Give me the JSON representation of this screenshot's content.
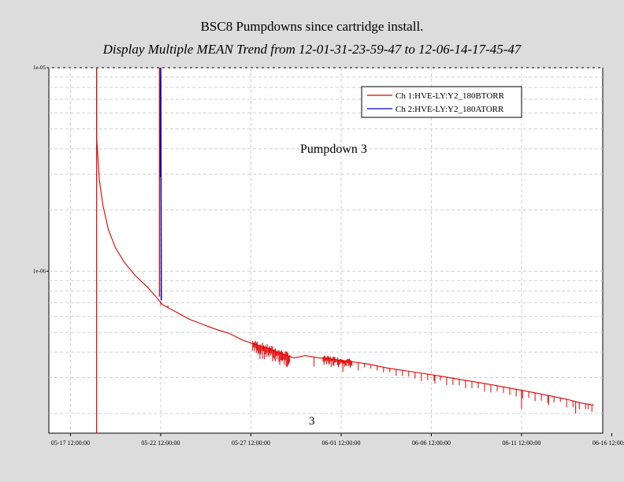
{
  "chart_data": {
    "type": "line",
    "title": "BSC8 Pumpdowns  since cartridge install.",
    "subtitle": "Display Multiple MEAN Trend from 12-01-31-23-59-47 to 12-06-14-17-45-47",
    "y_scale": "log",
    "ylim": [
      1.6e-07,
      1e-05
    ],
    "y_tick_labels": [
      "1e-05",
      "1e-06"
    ],
    "y_tick_values": [
      1e-05,
      1e-06
    ],
    "x_range_days": [
      -1.2,
      29.5
    ],
    "x_tick_labels": [
      "05-17 12:00:00",
      "05-22 12:00:00",
      "05-27 12:00:00",
      "06-01 12:00:00",
      "06-06 12:00:00",
      "06-11 12:00:00",
      "06-16 12:00:00"
    ],
    "x_tick_days": [
      0,
      5,
      10,
      15,
      20,
      25,
      30
    ],
    "grid": true,
    "legend_placement": "top-right",
    "annotations": [
      "Pumpdown 3",
      "3"
    ],
    "series": [
      {
        "name": "Ch 1:HVE-LY:Y2_180BTORR",
        "color": "#e00000",
        "points": [
          [
            1.45,
            4.5e-06
          ],
          [
            1.6,
            2.8e-06
          ],
          [
            1.8,
            2.1e-06
          ],
          [
            2.1,
            1.6e-06
          ],
          [
            2.5,
            1.3e-06
          ],
          [
            3.0,
            1.1e-06
          ],
          [
            3.6,
            9.5e-07
          ],
          [
            4.3,
            8.3e-07
          ],
          [
            4.9,
            7.2e-07
          ],
          [
            5.1,
            6.85e-07
          ],
          [
            5.5,
            6.55e-07
          ],
          [
            6.0,
            6.2e-07
          ],
          [
            6.6,
            5.8e-07
          ],
          [
            7.3,
            5.5e-07
          ],
          [
            8.0,
            5.2e-07
          ],
          [
            8.8,
            4.95e-07
          ],
          [
            9.5,
            4.6e-07
          ],
          [
            10.3,
            4.35e-07
          ],
          [
            11.0,
            4.15e-07
          ],
          [
            11.8,
            3.9e-07
          ],
          [
            12.4,
            3.75e-07
          ],
          [
            13.0,
            3.85e-07
          ],
          [
            13.8,
            3.75e-07
          ],
          [
            14.5,
            3.7e-07
          ],
          [
            15.5,
            3.6e-07
          ],
          [
            16.5,
            3.5e-07
          ],
          [
            17.5,
            3.35e-07
          ],
          [
            18.5,
            3.25e-07
          ],
          [
            19.5,
            3.15e-07
          ],
          [
            20.5,
            3.05e-07
          ],
          [
            21.5,
            2.95e-07
          ],
          [
            22.5,
            2.85e-07
          ],
          [
            23.5,
            2.75e-07
          ],
          [
            24.5,
            2.65e-07
          ],
          [
            25.5,
            2.55e-07
          ],
          [
            26.5,
            2.45e-07
          ],
          [
            27.5,
            2.35e-07
          ],
          [
            28.3,
            2.25e-07
          ],
          [
            29.0,
            2.2e-07
          ]
        ],
        "spikes_down": [
          [
            4.98,
            7e-07
          ],
          [
            10.5,
            3.7e-07
          ],
          [
            11.2,
            3.6e-07
          ],
          [
            13.5,
            3.4e-07
          ],
          [
            15.1,
            3.2e-07
          ],
          [
            20.2,
            2.8e-07
          ],
          [
            25.0,
            2.1e-07
          ],
          [
            26.5,
            2.2e-07
          ],
          [
            28.0,
            2e-07
          ],
          [
            28.7,
            2.1e-07
          ]
        ],
        "spikes_up": [
          [
            1.45,
            1e-05
          ],
          [
            5.0,
            6.8e-07
          ],
          [
            5.4,
            6.8e-07
          ]
        ]
      },
      {
        "name": "Ch 2:HVE-LY:Y2_180ATORR",
        "color": "#0000cc",
        "points": [
          [
            4.95,
            2.9e-06
          ],
          [
            5.0,
            1e-05
          ],
          [
            5.03,
            7.2e-07
          ]
        ]
      }
    ]
  },
  "legend": {
    "items": [
      {
        "label": "Ch 1:HVE-LY:Y2_180BTORR",
        "color": "#e00000"
      },
      {
        "label": "Ch 2:HVE-LY:Y2_180ATORR",
        "color": "#0000cc"
      }
    ]
  },
  "annotation_main": "Pumpdown 3",
  "annotation_small": "3"
}
